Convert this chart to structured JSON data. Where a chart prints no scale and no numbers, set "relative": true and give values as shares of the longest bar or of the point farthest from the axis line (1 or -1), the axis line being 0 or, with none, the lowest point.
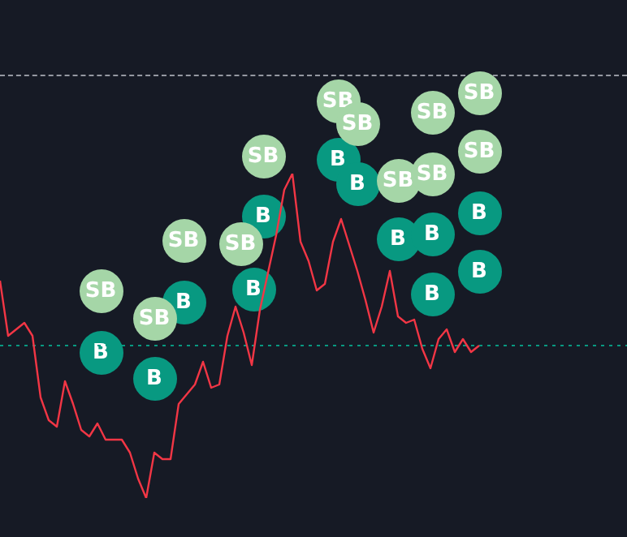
{
  "chart_data": {
    "type": "line",
    "relative": true,
    "legend": false,
    "tick_labels": false,
    "line_style": "solid",
    "marker": "none",
    "categories": [
      null,
      null,
      null,
      null,
      null,
      null,
      null,
      null,
      null,
      null,
      null,
      null,
      null,
      null,
      null,
      null,
      null,
      null,
      null,
      null,
      null,
      null,
      null,
      null,
      null,
      null,
      null,
      null,
      null,
      null,
      null,
      null,
      null,
      null,
      null,
      null,
      null,
      null,
      null,
      null,
      null,
      null,
      null,
      null,
      null,
      null,
      null,
      null,
      null,
      null,
      null,
      null,
      null,
      null,
      null,
      null,
      null,
      null,
      null,
      null
    ],
    "series": [
      {
        "color": "#f23645",
        "values": [
          0.67,
          0.5,
          0.52,
          0.54,
          0.5,
          0.31,
          0.24,
          0.22,
          0.36,
          0.29,
          0.21,
          0.19,
          0.23,
          0.18,
          0.18,
          0.18,
          0.14,
          0.06,
          0,
          0.14,
          0.12,
          0.12,
          0.29,
          0.32,
          0.35,
          0.42,
          0.34,
          0.35,
          0.5,
          0.59,
          0.51,
          0.41,
          0.58,
          null,
          0.81,
          0.95,
          1,
          0.79,
          0.73,
          0.64,
          0.66,
          0.79,
          0.86,
          null,
          0.7,
          0.61,
          0.51,
          0.59,
          0.7,
          0.56,
          0.54,
          0.55,
          0.46,
          0.4,
          0.49,
          0.52,
          0.45,
          0.49,
          0.45,
          0.47
        ]
      }
    ],
    "ref_lines": [
      {
        "axis": "y",
        "value": 0.47,
        "color": "#089981",
        "line_style": "dotted"
      }
    ],
    "annotations": [
      "SB",
      "B",
      "SB",
      "B",
      "SB",
      "B",
      "SB",
      "B",
      "SB",
      "B",
      "SB",
      "SB",
      "B",
      "B",
      "SB",
      "SB",
      "SB",
      "B",
      "B",
      "B",
      "SB",
      "SB",
      "B",
      "B"
    ]
  }
}
